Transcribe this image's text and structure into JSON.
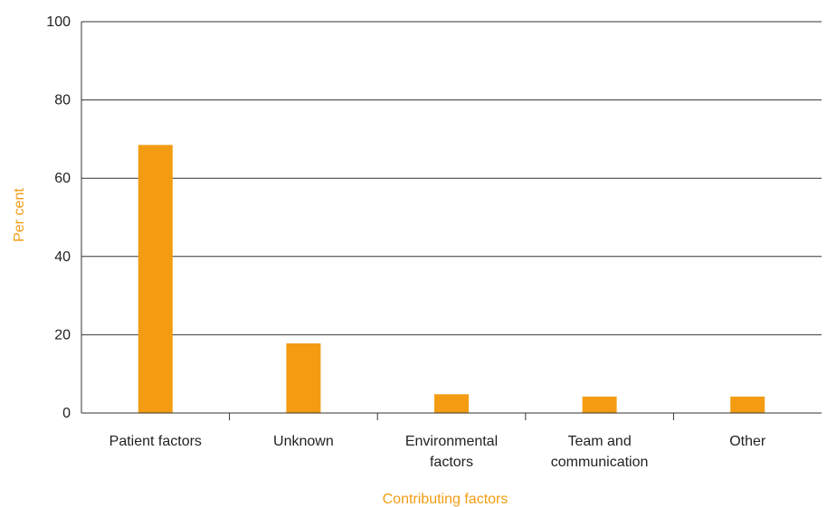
{
  "chart_data": {
    "type": "bar",
    "categories": [
      "Patient factors",
      "Unknown",
      "Environmental factors",
      "Team and communication",
      "Other"
    ],
    "category_lines": [
      [
        "Patient factors"
      ],
      [
        "Unknown"
      ],
      [
        "Environmental",
        "factors"
      ],
      [
        "Team and",
        "communication"
      ],
      [
        "Other"
      ]
    ],
    "values": [
      68.5,
      17.8,
      4.8,
      4.2,
      4.2
    ],
    "ylim": [
      0,
      100
    ],
    "yticks": [
      "0",
      "20",
      "40",
      "60",
      "80",
      "100"
    ],
    "ylabel": "Per cent",
    "xlabel": "Contributing factors",
    "bar_color": "#f39c12",
    "grid": true
  }
}
